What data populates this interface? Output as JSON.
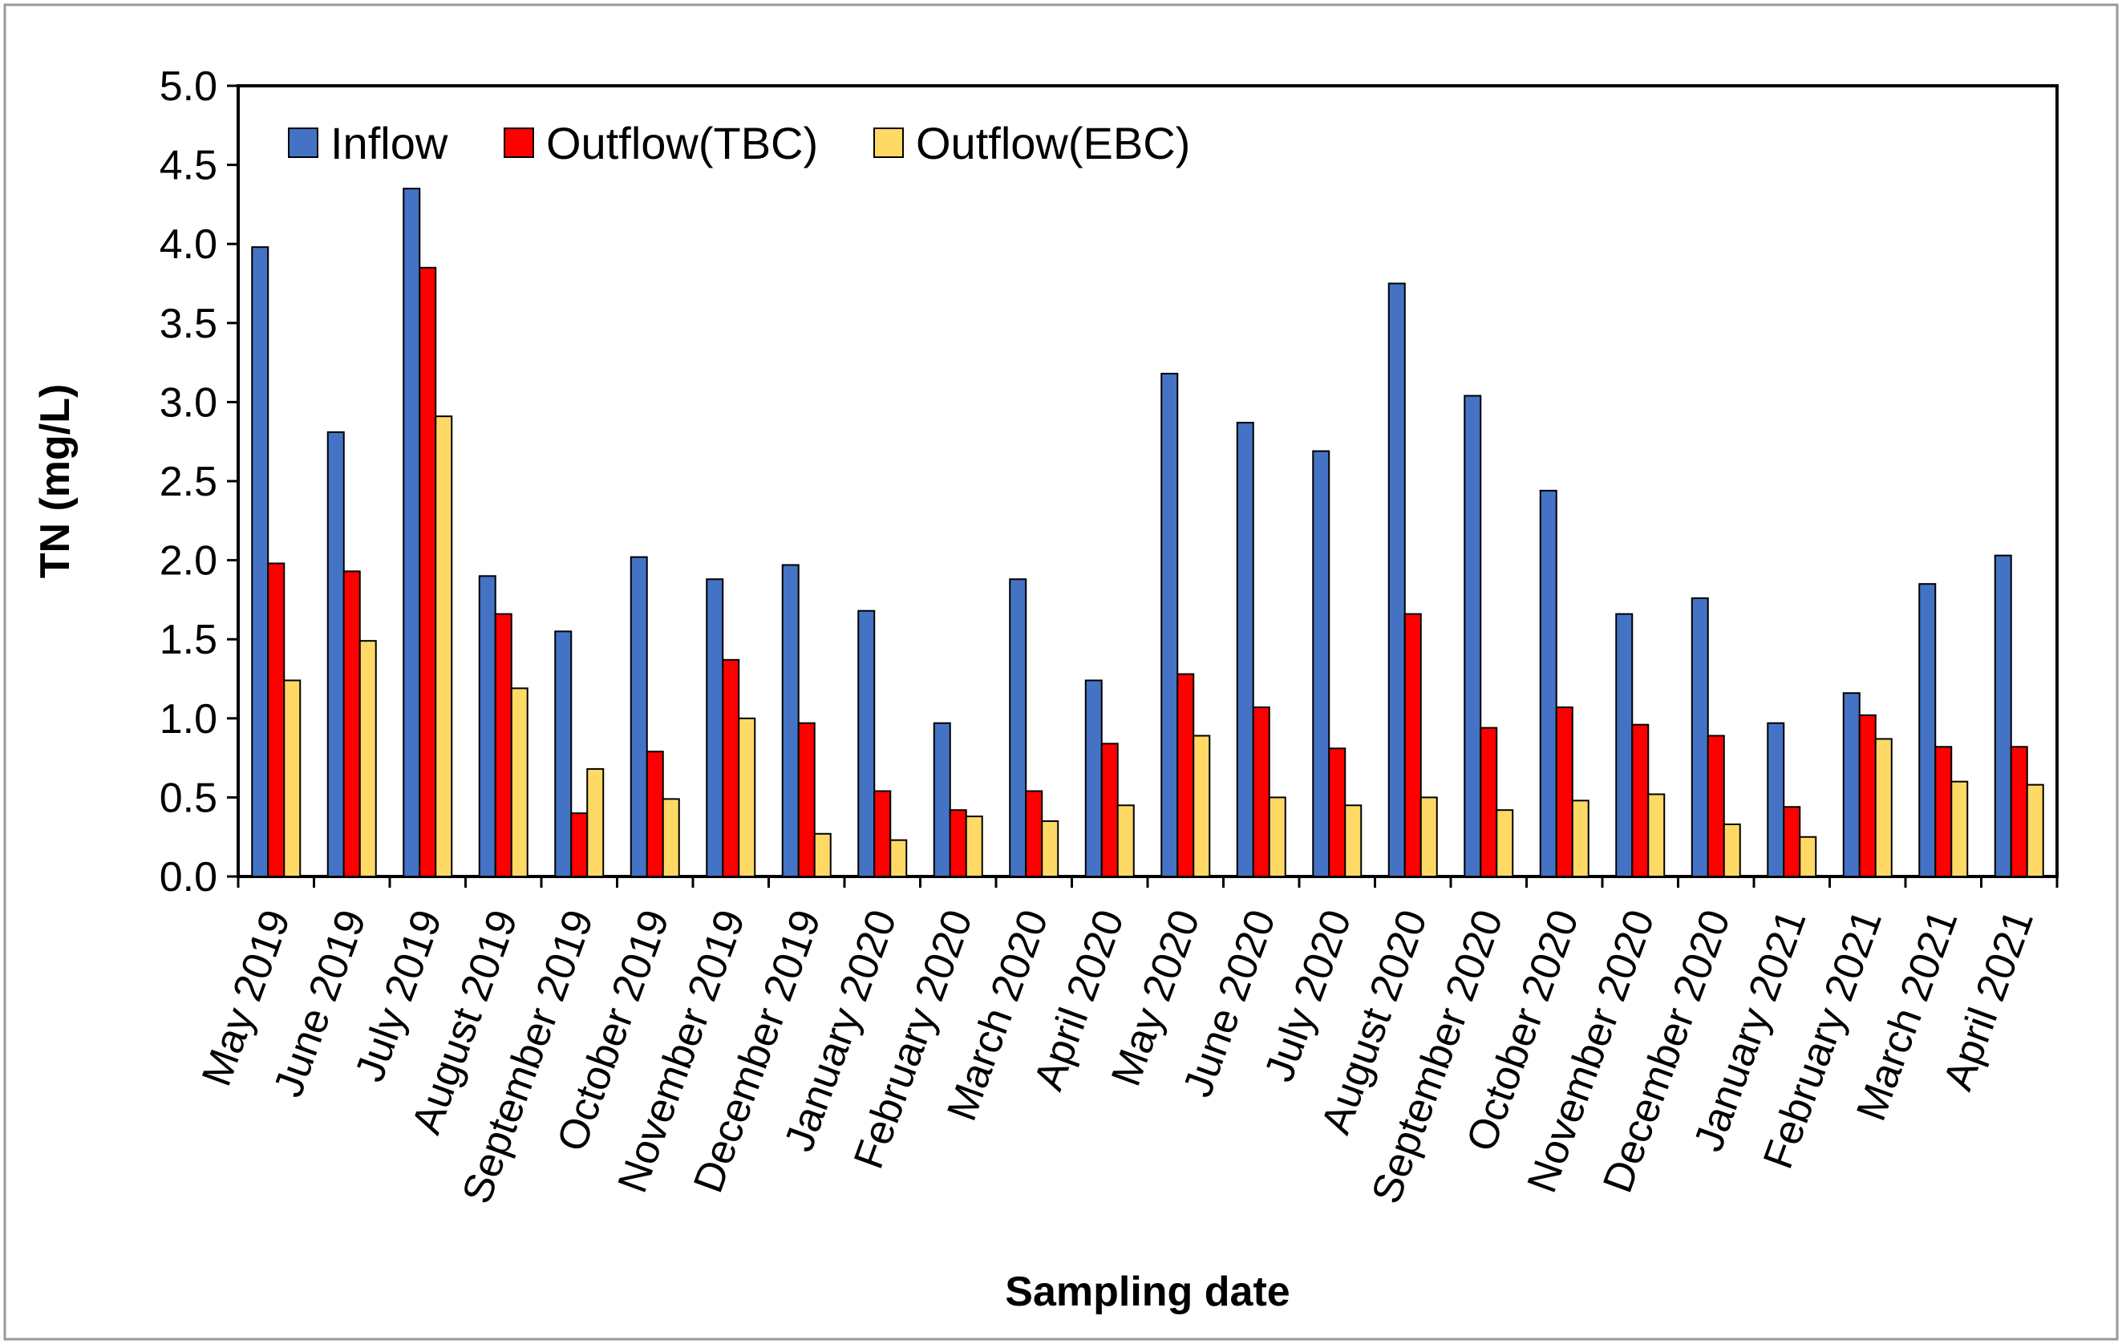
{
  "chart_data": {
    "type": "bar",
    "title": "",
    "xlabel": "Sampling date",
    "ylabel": "TN (mg/L)",
    "ylim": [
      0,
      5
    ],
    "y_tick_step": 0.5,
    "y_tick_labels": [
      "0.0",
      "0.5",
      "1.0",
      "1.5",
      "2.0",
      "2.5",
      "3.0",
      "3.5",
      "4.0",
      "4.5",
      "5.0"
    ],
    "grid": false,
    "legend_position": "top-left",
    "categories": [
      "May 2019",
      "June 2019",
      "July 2019",
      "August 2019",
      "September 2019",
      "October 2019",
      "November 2019",
      "December 2019",
      "January 2020",
      "February 2020",
      "March 2020",
      "April 2020",
      "May 2020",
      "June 2020",
      "July 2020",
      "August 2020",
      "September 2020",
      "October 2020",
      "November 2020",
      "December 2020",
      "January 2021",
      "February 2021",
      "March 2021",
      "April 2021"
    ],
    "series": [
      {
        "name": "Inflow",
        "color": "#4472C4",
        "values": [
          3.98,
          2.81,
          4.35,
          1.9,
          1.55,
          2.02,
          1.88,
          1.97,
          1.68,
          0.97,
          1.88,
          1.24,
          3.18,
          2.87,
          2.69,
          3.75,
          3.04,
          2.44,
          1.66,
          1.76,
          0.97,
          1.16,
          1.85,
          2.03
        ]
      },
      {
        "name": "Outflow(TBC)",
        "color": "#FF0000",
        "values": [
          1.98,
          1.93,
          3.85,
          1.66,
          0.4,
          0.79,
          1.37,
          0.97,
          0.54,
          0.42,
          0.54,
          0.84,
          1.28,
          1.07,
          0.81,
          1.66,
          0.94,
          1.07,
          0.96,
          0.89,
          0.44,
          1.02,
          0.82,
          0.82
        ]
      },
      {
        "name": "Outflow(EBC)",
        "color": "#FFD966",
        "values": [
          1.24,
          1.49,
          2.91,
          1.19,
          0.68,
          0.49,
          1.0,
          0.27,
          0.23,
          0.38,
          0.35,
          0.45,
          0.89,
          0.5,
          0.45,
          0.5,
          0.42,
          0.48,
          0.52,
          0.33,
          0.25,
          0.87,
          0.6,
          0.58
        ]
      }
    ]
  }
}
